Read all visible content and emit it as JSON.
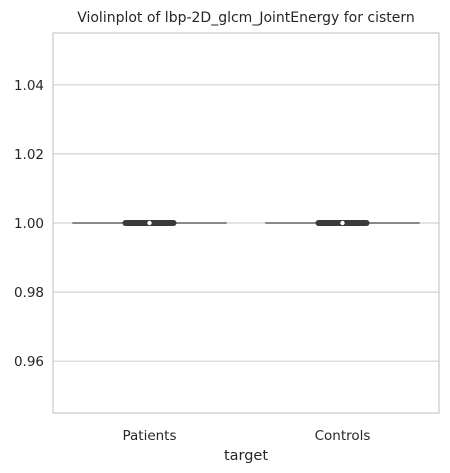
{
  "chart_data": {
    "type": "violin",
    "title": "Violinplot of lbp-2D_glcm_JointEnergy for cistern",
    "xlabel": "target",
    "ylabel": "",
    "categories": [
      "Patients",
      "Controls"
    ],
    "values": [
      1.0,
      1.0
    ],
    "ylim": [
      0.945,
      1.055
    ],
    "yticks": [
      0.96,
      0.98,
      1.0,
      1.02,
      1.04
    ],
    "ytick_labels": [
      "0.96",
      "0.98",
      "1.00",
      "1.02",
      "1.04"
    ],
    "grid": true,
    "legend": "none",
    "colors": {
      "grid": "#d0d0d0",
      "frame": "#c8c8c8",
      "violin_line": "#666666",
      "box": "#3a3a3a"
    }
  }
}
